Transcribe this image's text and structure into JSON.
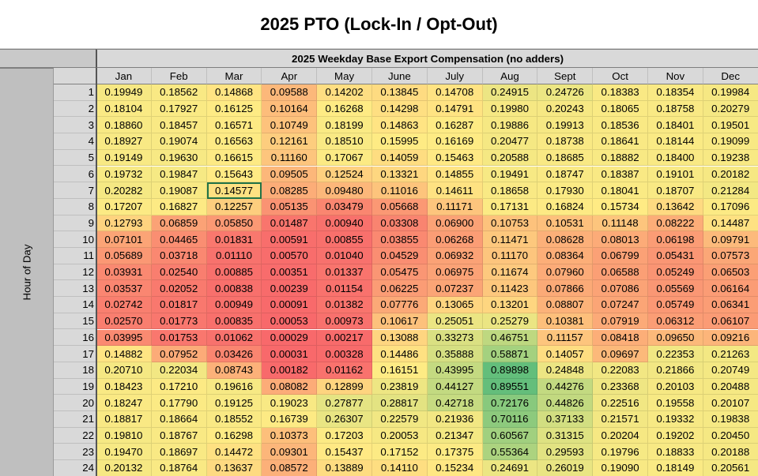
{
  "title": "2025 PTO (Lock-In / Opt-Out)",
  "banner": "2025 Weekday Base Export Compensation (no adders)",
  "row_axis_label": "Hour of Day",
  "selected_cell": {
    "hour": 7,
    "month": "Mar"
  },
  "chart_data": {
    "type": "heatmap",
    "title": "2025 Weekday Base Export Compensation (no adders)",
    "row_label": "Hour of Day",
    "months": [
      "Jan",
      "Feb",
      "Mar",
      "Apr",
      "May",
      "June",
      "July",
      "Aug",
      "Sept",
      "Oct",
      "Nov",
      "Dec"
    ],
    "hours": [
      1,
      2,
      3,
      4,
      5,
      6,
      7,
      8,
      9,
      10,
      11,
      12,
      13,
      14,
      15,
      16,
      17,
      18,
      19,
      20,
      21,
      22,
      23,
      24
    ],
    "values": [
      [
        "0.19949",
        "0.18562",
        "0.14868",
        "0.09588",
        "0.14202",
        "0.13845",
        "0.14708",
        "0.24915",
        "0.24726",
        "0.18383",
        "0.18354",
        "0.19984"
      ],
      [
        "0.18104",
        "0.17927",
        "0.16125",
        "0.10164",
        "0.16268",
        "0.14298",
        "0.14791",
        "0.19980",
        "0.20243",
        "0.18065",
        "0.18758",
        "0.20279"
      ],
      [
        "0.18860",
        "0.18457",
        "0.16571",
        "0.10749",
        "0.18199",
        "0.14863",
        "0.16287",
        "0.19886",
        "0.19913",
        "0.18536",
        "0.18401",
        "0.19501"
      ],
      [
        "0.18927",
        "0.19074",
        "0.16563",
        "0.12161",
        "0.18510",
        "0.15995",
        "0.16169",
        "0.20477",
        "0.18738",
        "0.18641",
        "0.18144",
        "0.19099"
      ],
      [
        "0.19149",
        "0.19630",
        "0.16615",
        "0.11160",
        "0.17067",
        "0.14059",
        "0.15463",
        "0.20588",
        "0.18685",
        "0.18882",
        "0.18400",
        "0.19238"
      ],
      [
        "0.19732",
        "0.19847",
        "0.15643",
        "0.09505",
        "0.12524",
        "0.13321",
        "0.14855",
        "0.19491",
        "0.18747",
        "0.18387",
        "0.19101",
        "0.20182"
      ],
      [
        "0.20282",
        "0.19087",
        "0.14577",
        "0.08285",
        "0.09480",
        "0.11016",
        "0.14611",
        "0.18658",
        "0.17930",
        "0.18041",
        "0.18707",
        "0.21284"
      ],
      [
        "0.17207",
        "0.16827",
        "0.12257",
        "0.05135",
        "0.03479",
        "0.05668",
        "0.11171",
        "0.17131",
        "0.16824",
        "0.15734",
        "0.13642",
        "0.17096"
      ],
      [
        "0.12793",
        "0.06859",
        "0.05850",
        "0.01487",
        "0.00940",
        "0.03308",
        "0.06900",
        "0.10753",
        "0.10531",
        "0.11148",
        "0.08222",
        "0.14487"
      ],
      [
        "0.07101",
        "0.04465",
        "0.01831",
        "0.00591",
        "0.00855",
        "0.03855",
        "0.06268",
        "0.11471",
        "0.08628",
        "0.08013",
        "0.06198",
        "0.09791"
      ],
      [
        "0.05689",
        "0.03718",
        "0.01110",
        "0.00570",
        "0.01040",
        "0.04529",
        "0.06932",
        "0.11170",
        "0.08364",
        "0.06799",
        "0.05431",
        "0.07573"
      ],
      [
        "0.03931",
        "0.02540",
        "0.00885",
        "0.00351",
        "0.01337",
        "0.05475",
        "0.06975",
        "0.11674",
        "0.07960",
        "0.06588",
        "0.05249",
        "0.06503"
      ],
      [
        "0.03537",
        "0.02052",
        "0.00838",
        "0.00239",
        "0.01154",
        "0.06225",
        "0.07237",
        "0.11423",
        "0.07866",
        "0.07086",
        "0.05569",
        "0.06164"
      ],
      [
        "0.02742",
        "0.01817",
        "0.00949",
        "0.00091",
        "0.01382",
        "0.07776",
        "0.13065",
        "0.13201",
        "0.08807",
        "0.07247",
        "0.05749",
        "0.06341"
      ],
      [
        "0.02570",
        "0.01773",
        "0.00835",
        "0.00053",
        "0.00973",
        "0.10617",
        "0.25051",
        "0.25279",
        "0.10381",
        "0.07919",
        "0.06312",
        "0.06107"
      ],
      [
        "0.03995",
        "0.01753",
        "0.01062",
        "0.00029",
        "0.00217",
        "0.13088",
        "0.33273",
        "0.46751",
        "0.11157",
        "0.08418",
        "0.09650",
        "0.09216"
      ],
      [
        "0.14882",
        "0.07952",
        "0.03426",
        "0.00031",
        "0.00328",
        "0.14486",
        "0.35888",
        "0.58871",
        "0.14057",
        "0.09697",
        "0.22353",
        "0.21263"
      ],
      [
        "0.20710",
        "0.22034",
        "0.08743",
        "0.00182",
        "0.01162",
        "0.16151",
        "0.43995",
        "0.89898",
        "0.24848",
        "0.22083",
        "0.21866",
        "0.20749"
      ],
      [
        "0.18423",
        "0.17210",
        "0.19616",
        "0.08082",
        "0.12899",
        "0.23819",
        "0.44127",
        "0.89551",
        "0.44276",
        "0.23368",
        "0.20103",
        "0.20488"
      ],
      [
        "0.18247",
        "0.17790",
        "0.19125",
        "0.19023",
        "0.27877",
        "0.28817",
        "0.42718",
        "0.72176",
        "0.44826",
        "0.22516",
        "0.19558",
        "0.20107"
      ],
      [
        "0.18817",
        "0.18664",
        "0.18552",
        "0.16739",
        "0.26307",
        "0.22579",
        "0.21936",
        "0.70116",
        "0.37133",
        "0.21571",
        "0.19332",
        "0.19838"
      ],
      [
        "0.19810",
        "0.18767",
        "0.16298",
        "0.10373",
        "0.17203",
        "0.20053",
        "0.21347",
        "0.60567",
        "0.31315",
        "0.20204",
        "0.19202",
        "0.20450"
      ],
      [
        "0.19470",
        "0.18697",
        "0.14472",
        "0.09301",
        "0.15437",
        "0.17152",
        "0.17375",
        "0.55364",
        "0.29593",
        "0.19796",
        "0.18833",
        "0.20188"
      ],
      [
        "0.20132",
        "0.18764",
        "0.13637",
        "0.08572",
        "0.13889",
        "0.14110",
        "0.15234",
        "0.24691",
        "0.26019",
        "0.19090",
        "0.18149",
        "0.20561"
      ]
    ],
    "color_scale": {
      "low": "#f8696b",
      "mid": "#ffeb84",
      "high": "#63be7b"
    }
  }
}
